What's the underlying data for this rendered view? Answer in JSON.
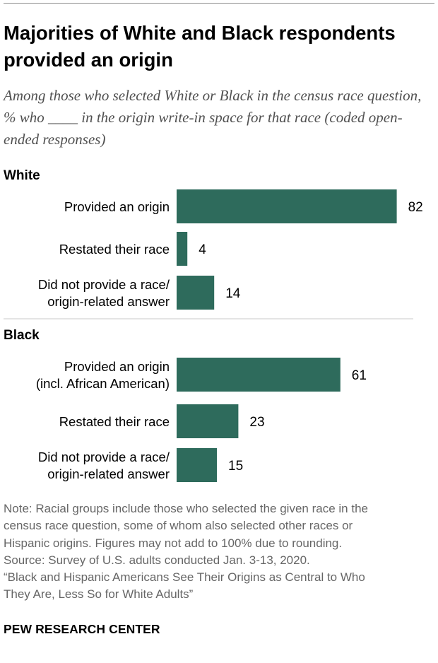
{
  "title": "Majorities of White and Black respondents provided an origin",
  "subtitle": "Among those who selected White or Black in the census race question, % who ____ in the origin write-in space for that race (coded open-ended responses)",
  "colors": {
    "bar": "#2e6b5c",
    "divider": "#c8c8c8",
    "label": "#000000"
  },
  "chart_data": {
    "type": "bar",
    "orientation": "horizontal",
    "title": "Majorities of White and Black respondents provided an origin",
    "xlabel": "",
    "ylabel": "",
    "xlim": [
      0,
      100
    ],
    "unit": "%",
    "groups": [
      {
        "name": "White",
        "categories": [
          [
            "Provided an origin"
          ],
          [
            "Restated their race"
          ],
          [
            "Did not provide a race/",
            "origin-related answer"
          ]
        ],
        "values": [
          82,
          4,
          14
        ]
      },
      {
        "name": "Black",
        "categories": [
          [
            "Provided an origin",
            "(incl. African American)"
          ],
          [
            "Restated their race"
          ],
          [
            "Did not provide a race/",
            "origin-related answer"
          ]
        ],
        "values": [
          61,
          23,
          15
        ]
      }
    ]
  },
  "note": {
    "lines": [
      "Note: Racial groups include those who selected the given race in the",
      "census race question, some of whom also selected other races or",
      "Hispanic origins. Figures may not add to 100% due to rounding.",
      "Source: Survey of U.S. adults conducted Jan. 3-13, 2020.",
      "“Black and Hispanic Americans See Their Origins as Central to Who",
      "They Are, Less So for White Adults”"
    ]
  },
  "brand": "PEW RESEARCH CENTER"
}
